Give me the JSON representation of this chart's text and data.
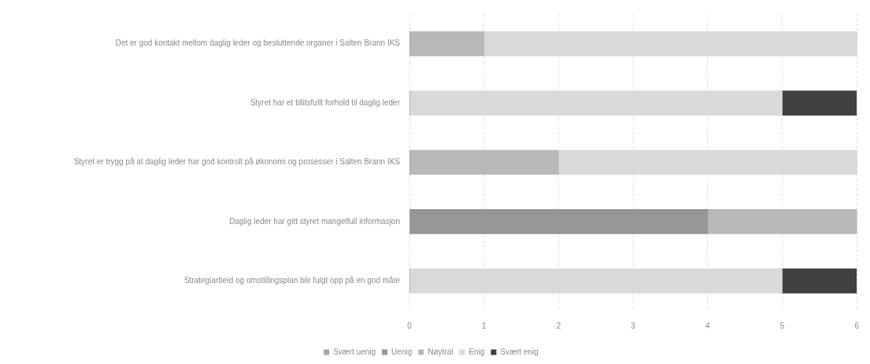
{
  "chart_data": {
    "type": "bar",
    "orientation": "horizontal",
    "stacked": true,
    "categories": [
      "Det er god kontakt mellom daglig leder og besluttende organer i Salten Brann IKS",
      "Styret har et tillitsfullt forhold til daglig leder",
      "Styret er trygg på at daglig leder har god kontroll på økonomi og prosesser i Salten Brann IKS",
      "Daglig leder har gitt styret mangelfull informasjon",
      "Strategiarbeid og omstillingsplan blir fulgt opp på en god måte"
    ],
    "series": [
      {
        "name": "Svært uenig",
        "color": "#a6a6a6",
        "values": [
          0,
          0,
          0,
          0,
          0
        ]
      },
      {
        "name": "Uenig",
        "color": "#969696",
        "values": [
          0,
          0,
          0,
          4,
          0
        ]
      },
      {
        "name": "Nøytral",
        "color": "#b8b8b8",
        "values": [
          1,
          0,
          2,
          2,
          0
        ]
      },
      {
        "name": "Enig",
        "color": "#d9d9d9",
        "values": [
          5,
          5,
          4,
          0,
          5
        ]
      },
      {
        "name": "Svært enig",
        "color": "#404040",
        "values": [
          0,
          1,
          0,
          0,
          1
        ]
      }
    ],
    "xlim": [
      0,
      6
    ],
    "xticks": [
      0,
      1,
      2,
      3,
      4,
      5,
      6
    ],
    "grid": "x",
    "legend": "bottom"
  }
}
